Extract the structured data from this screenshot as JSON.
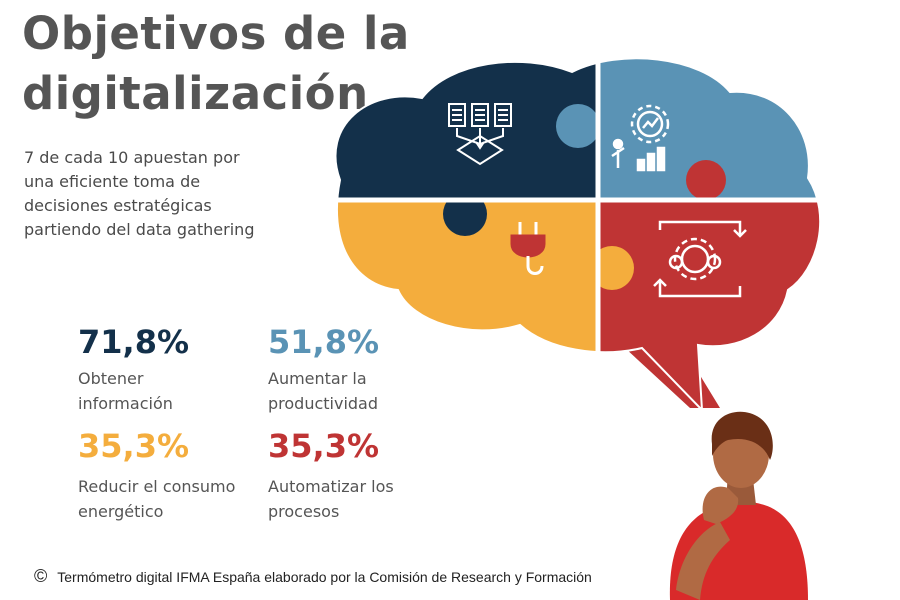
{
  "title_line1": "Objetivos de la",
  "title_line2": "digitalización",
  "subtitle": "7 de cada 10 apuestan por una eficiente toma de decisiones estratégicas partiendo del data gathering",
  "stats": [
    {
      "value": "71,8%",
      "label_line1": "Obtener",
      "label_line2": "información",
      "color": "#13304a"
    },
    {
      "value": "51,8%",
      "label_line1": "Aumentar la",
      "label_line2": "productividad",
      "color": "#5a93b5"
    },
    {
      "value": "35,3%",
      "label_line1": "Reducir el consumo",
      "label_line2": "energético",
      "color": "#f4ad3d"
    },
    {
      "value": "35,3%",
      "label_line1": "Automatizar los",
      "label_line2": "procesos",
      "color": "#bf3434"
    }
  ],
  "footer": {
    "symbol": "©",
    "text": "Termómetro digital IFMA España elaborado por la Comisión de Research y Formación"
  },
  "icons": [
    "documents-icon",
    "gear-chart-icon",
    "plug-icon",
    "automation-gears-icon",
    "thinking-person"
  ]
}
